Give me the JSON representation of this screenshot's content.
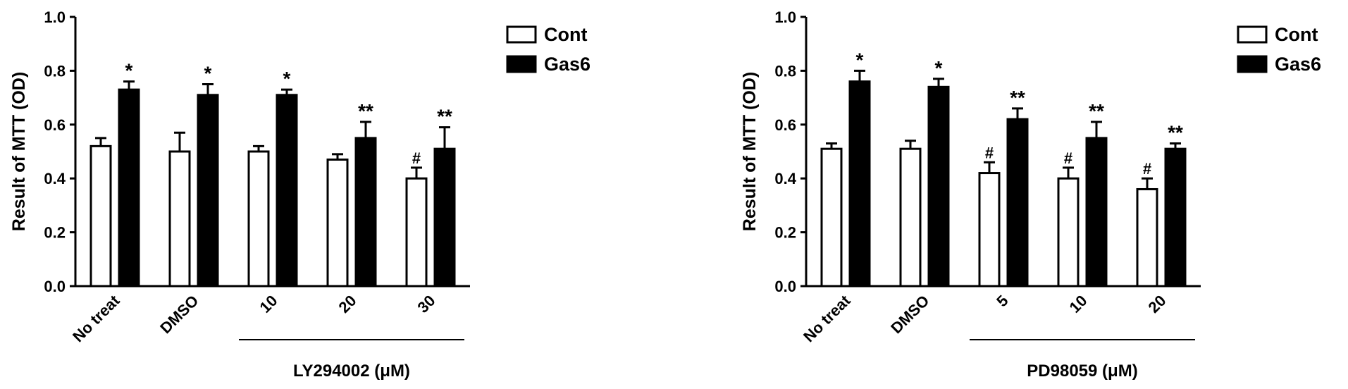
{
  "chart_data": [
    {
      "type": "bar",
      "ylabel": "Result of MTT (OD)",
      "xlabel": "LY294002 (μM)",
      "categories": [
        "No treat",
        "DMSO",
        "10",
        "20",
        "30"
      ],
      "ylim": [
        0,
        1
      ],
      "yticks": [
        {
          "value": 0,
          "label": "0.0"
        },
        {
          "value": 0.2,
          "label": "0.2"
        },
        {
          "value": 0.4,
          "label": "0.4"
        },
        {
          "value": 0.6,
          "label": "0.6"
        },
        {
          "value": 0.8,
          "label": "0.8"
        },
        {
          "value": 1,
          "label": "1.0"
        }
      ],
      "series": [
        {
          "name": "Cont",
          "color": "#ffffff",
          "values": [
            0.52,
            0.5,
            0.5,
            0.47,
            0.4
          ],
          "errors": [
            0.03,
            0.07,
            0.02,
            0.02,
            0.04
          ],
          "annotations": [
            null,
            null,
            null,
            null,
            "#"
          ]
        },
        {
          "name": "Gas6",
          "color": "#000000",
          "values": [
            0.73,
            0.71,
            0.71,
            0.55,
            0.51
          ],
          "errors": [
            0.03,
            0.04,
            0.02,
            0.06,
            0.08
          ],
          "annotations": [
            "*",
            "*",
            "*",
            "**",
            "**"
          ]
        }
      ]
    },
    {
      "type": "bar",
      "ylabel": "Result of MTT (OD)",
      "xlabel": "PD98059 (μM)",
      "categories": [
        "No treat",
        "DMSO",
        "5",
        "10",
        "20"
      ],
      "ylim": [
        0,
        1
      ],
      "yticks": [
        {
          "value": 0,
          "label": "0.0"
        },
        {
          "value": 0.2,
          "label": "0.2"
        },
        {
          "value": 0.4,
          "label": "0.4"
        },
        {
          "value": 0.6,
          "label": "0.6"
        },
        {
          "value": 0.8,
          "label": "0.8"
        },
        {
          "value": 1,
          "label": "1.0"
        }
      ],
      "series": [
        {
          "name": "Cont",
          "color": "#ffffff",
          "values": [
            0.51,
            0.51,
            0.42,
            0.4,
            0.36
          ],
          "errors": [
            0.02,
            0.03,
            0.04,
            0.04,
            0.04
          ],
          "annotations": [
            null,
            null,
            "#",
            "#",
            "#"
          ]
        },
        {
          "name": "Gas6",
          "color": "#000000",
          "values": [
            0.76,
            0.74,
            0.62,
            0.55,
            0.51
          ],
          "errors": [
            0.04,
            0.03,
            0.04,
            0.06,
            0.02
          ],
          "annotations": [
            "*",
            "*",
            "**",
            "**",
            "**"
          ]
        }
      ]
    }
  ]
}
